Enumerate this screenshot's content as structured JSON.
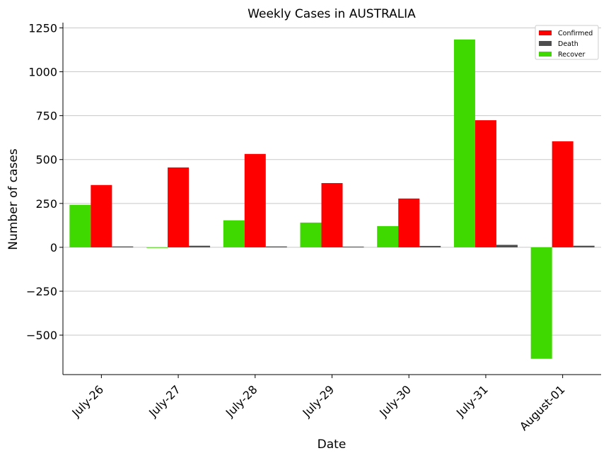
{
  "chart_data": {
    "type": "bar",
    "title": "Weekly Cases in AUSTRALIA",
    "xlabel": "Date",
    "ylabel": "Number of cases",
    "categories": [
      "July-26",
      "July-27",
      "July-28",
      "July-29",
      "July-30",
      "July-31",
      "August-01"
    ],
    "series": [
      {
        "name": "Recover",
        "color": "#3fd900",
        "values": [
          242,
          0,
          154,
          141,
          121,
          1184,
          -635
        ]
      },
      {
        "name": "Confirmed",
        "color": "#ff0000",
        "values": [
          355,
          455,
          532,
          366,
          278,
          724,
          604
        ]
      },
      {
        "name": "Death",
        "color": "#4d4d4d",
        "values": [
          5,
          9,
          5,
          4,
          8,
          14,
          9
        ]
      }
    ],
    "legend_order": [
      "Confirmed",
      "Death",
      "Recover"
    ],
    "legend_position": "top-right",
    "ylim": [
      -725,
      1280
    ],
    "yticks": [
      -500,
      -250,
      0,
      250,
      500,
      750,
      1000,
      1250
    ],
    "ytick_labels": [
      "−500",
      "−250",
      "0",
      "250",
      "500",
      "750",
      "1000",
      "1250"
    ],
    "grid": "horizontal"
  }
}
